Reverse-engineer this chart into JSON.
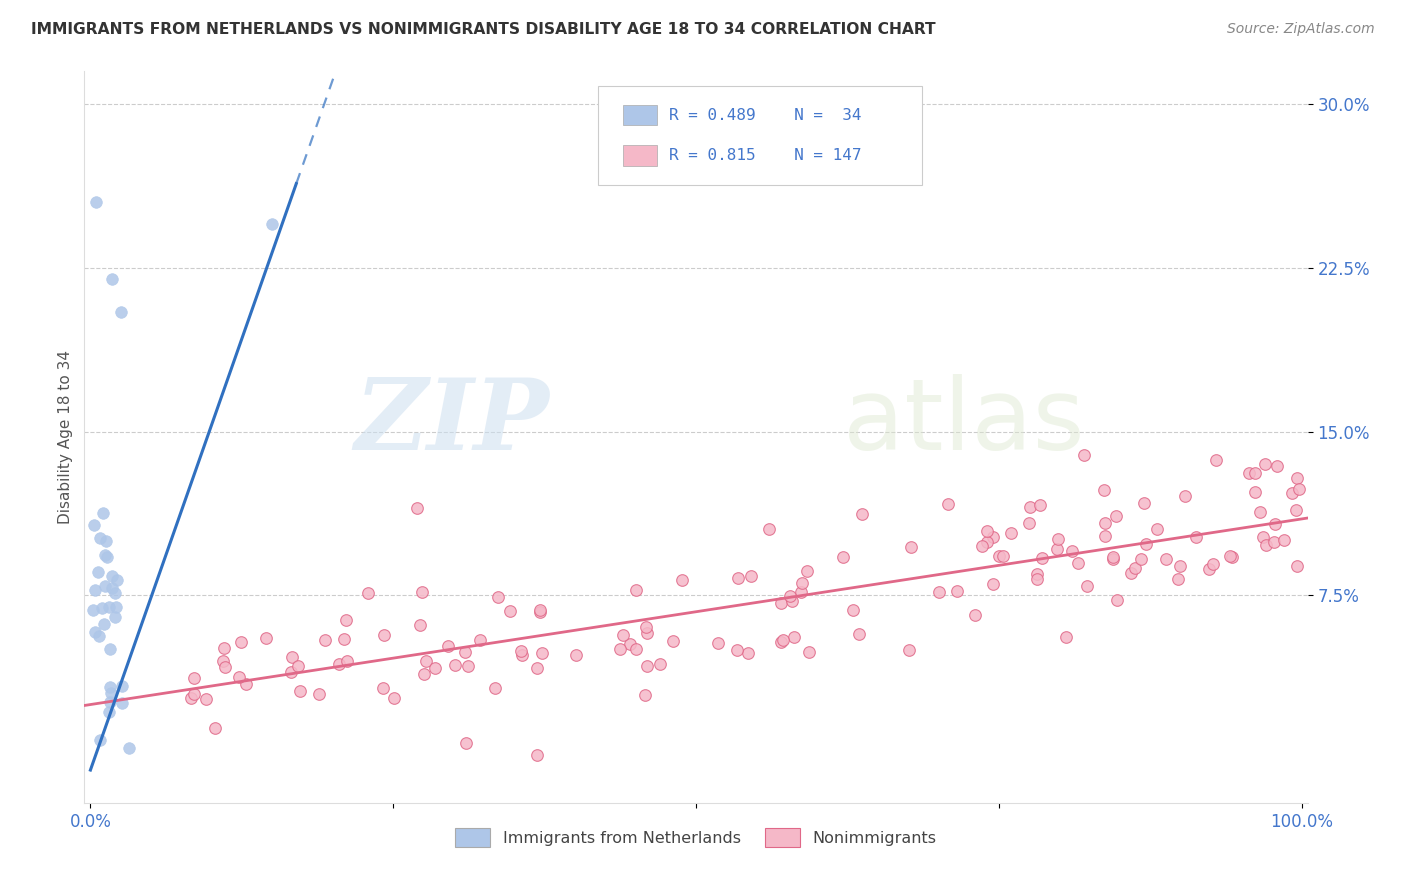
{
  "title": "IMMIGRANTS FROM NETHERLANDS VS NONIMMIGRANTS DISABILITY AGE 18 TO 34 CORRELATION CHART",
  "source": "Source: ZipAtlas.com",
  "ylabel": "Disability Age 18 to 34",
  "xlim": [
    -0.005,
    1.005
  ],
  "ylim": [
    -0.02,
    0.315
  ],
  "yticks": [
    0.075,
    0.15,
    0.225,
    0.3
  ],
  "ytick_labels": [
    "7.5%",
    "15.0%",
    "22.5%",
    "30.0%"
  ],
  "xticks": [
    0.0,
    0.25,
    0.5,
    0.75,
    1.0
  ],
  "xtick_labels": [
    "0.0%",
    "",
    "",
    "",
    "100.0%"
  ],
  "blue_R": 0.489,
  "blue_N": 34,
  "pink_R": 0.815,
  "pink_N": 147,
  "blue_color": "#aec6e8",
  "blue_edge_color": "#aec6e8",
  "blue_line_color": "#3070c0",
  "pink_color": "#f5b8c8",
  "pink_edge_color": "#e06888",
  "pink_line_color": "#e06888",
  "legend_label_blue": "Immigrants from Netherlands",
  "legend_label_pink": "Nonimmigrants",
  "watermark_zip": "ZIP",
  "watermark_atlas": "atlas",
  "background_color": "#ffffff",
  "grid_color": "#cccccc",
  "title_color": "#333333",
  "axis_color": "#4477cc",
  "blue_line_intercept": -0.005,
  "blue_line_slope": 1.58,
  "pink_line_intercept": 0.025,
  "pink_line_slope": 0.085
}
